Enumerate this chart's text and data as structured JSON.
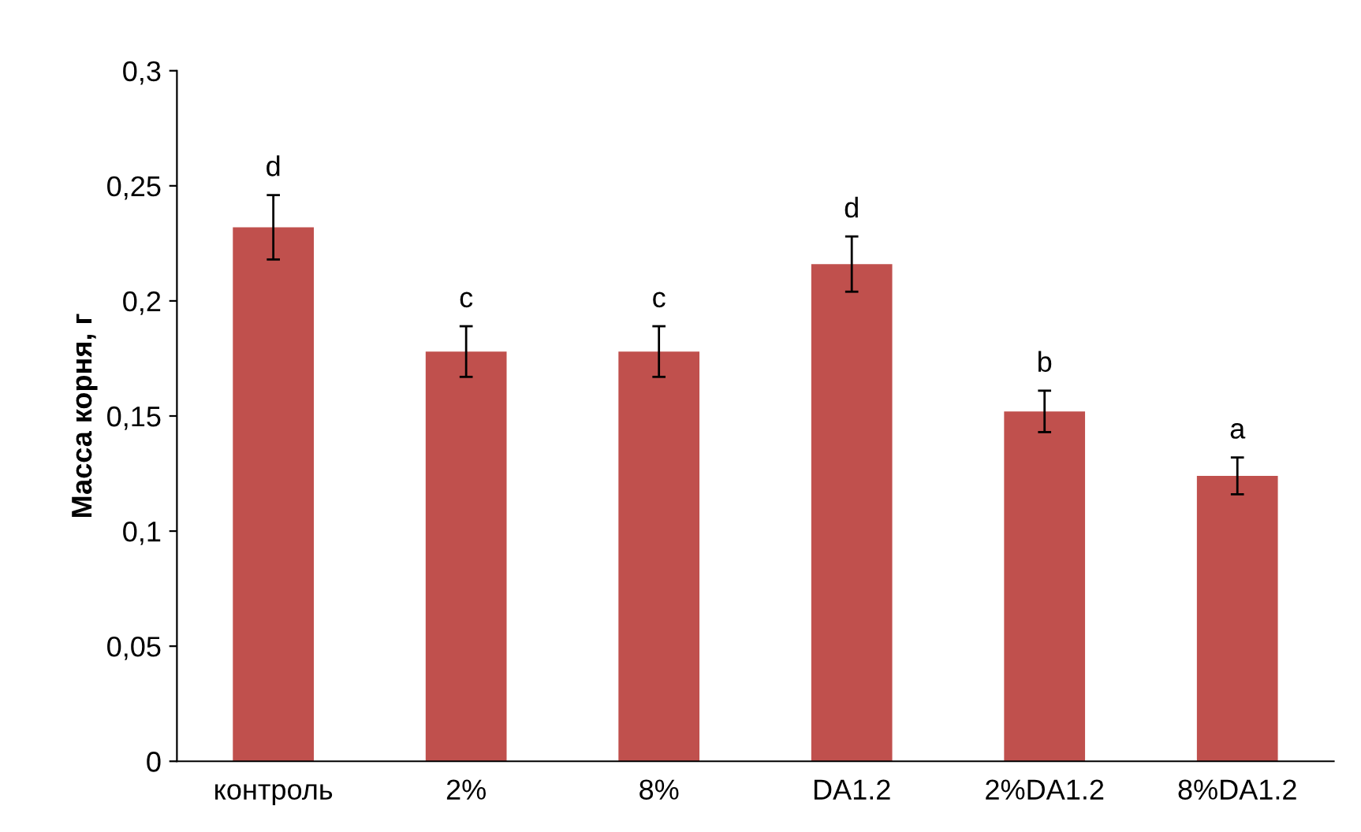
{
  "chart_data": {
    "type": "bar",
    "ylabel": "Масса корня, г",
    "categories": [
      "контроль",
      "2%",
      "8%",
      "DA1.2",
      "2%DA1.2",
      "8%DA1.2"
    ],
    "values": [
      0.232,
      0.178,
      0.178,
      0.216,
      0.152,
      0.124
    ],
    "errors": [
      0.014,
      0.011,
      0.011,
      0.012,
      0.009,
      0.008
    ],
    "color": "#c0504d",
    "ylim": [
      0,
      0.3
    ],
    "yticks": [
      0,
      {
        "value": 0.05,
        "label": "0,05"
      },
      {
        "value": 0.1,
        "label": "0,1"
      },
      {
        "value": 0.15,
        "label": "0,15"
      },
      {
        "value": 0.2,
        "label": "0,2"
      },
      {
        "value": 0.25,
        "label": "0,25"
      },
      {
        "value": 0.3,
        "label": "0,3"
      }
    ],
    "grid": false,
    "annotations": [
      {
        "text": "d",
        "x": "контроль",
        "y": 0.232
      },
      {
        "text": "c",
        "x": "2%",
        "y": 0.178
      },
      {
        "text": "c",
        "x": "8%",
        "y": 0.178
      },
      {
        "text": "d",
        "x": "DA1.2",
        "y": 0.216
      },
      {
        "text": "b",
        "x": "2%DA1.2",
        "y": 0.152
      },
      {
        "text": "a",
        "x": "8%DA1.2",
        "y": 0.124
      }
    ]
  }
}
